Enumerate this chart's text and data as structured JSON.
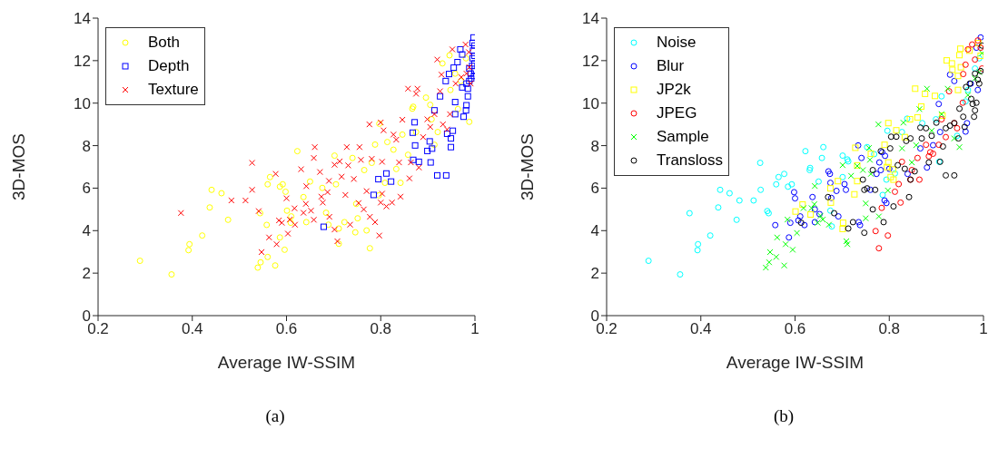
{
  "chart_data": [
    {
      "type": "scatter",
      "xlabel": "Average IW-SSIM",
      "ylabel": "3D-MOS",
      "annotations": [
        "(a)"
      ],
      "xlim": [
        0.2,
        1
      ],
      "xticks": [
        0.2,
        0.4,
        0.6,
        0.8,
        1
      ],
      "ylim": [
        0,
        14
      ],
      "yticks": [
        0,
        2,
        4,
        6,
        8,
        10,
        12,
        14
      ],
      "grid": false,
      "legend": "top left",
      "series": [
        {
          "name": "Both",
          "color": "#ffff00",
          "marker": "circle",
          "x": [
            0.289,
            0.356,
            0.392,
            0.394,
            0.421,
            0.437,
            0.441,
            0.462,
            0.476,
            0.539,
            0.545,
            0.56,
            0.558,
            0.544,
            0.56,
            0.565,
            0.576,
            0.586,
            0.596,
            0.586,
            0.592,
            0.598,
            0.601,
            0.61,
            0.609,
            0.623,
            0.636,
            0.642,
            0.65,
            0.676,
            0.684,
            0.689,
            0.702,
            0.705,
            0.711,
            0.711,
            0.723,
            0.74,
            0.746,
            0.748,
            0.751,
            0.765,
            0.77,
            0.777,
            0.781,
            0.788,
            0.797,
            0.796,
            0.809,
            0.814,
            0.827,
            0.833,
            0.842,
            0.846,
            0.858,
            0.867,
            0.869,
            0.875,
            0.896,
            0.905,
            0.908,
            0.914,
            0.921,
            0.931,
            0.946,
            0.948,
            0.958,
            0.964,
            0.97,
            0.981,
            0.988
          ],
          "values": [
            2.58,
            1.94,
            3.08,
            3.36,
            3.77,
            5.09,
            5.92,
            5.76,
            4.51,
            2.26,
            2.51,
            2.76,
            4.27,
            4.82,
            6.18,
            6.52,
            2.36,
            3.68,
            3.1,
            6.07,
            6.18,
            5.83,
            4.94,
            4.67,
            4.37,
            7.74,
            5.58,
            4.4,
            6.31,
            6.01,
            4.84,
            4.28,
            7.53,
            6.18,
            4.1,
            3.38,
            4.4,
            7.42,
            3.92,
            5.26,
            4.58,
            6.85,
            4.01,
            3.17,
            7.19,
            8.05,
            9.03,
            5.66,
            6.25,
            8.17,
            7.81,
            6.9,
            6.25,
            8.52,
            7.57,
            9.74,
            9.83,
            8.64,
            10.26,
            9.92,
            9.24,
            8.04,
            8.64,
            11.87,
            12.25,
            10.62,
            11.39,
            9.72,
            11.04,
            12.11,
            9.12
          ]
        },
        {
          "name": "Depth",
          "color": "#0000ff",
          "marker": "square",
          "x": [
            0.679,
            0.785,
            0.795,
            0.812,
            0.822,
            0.869,
            0.873,
            0.881,
            0.872,
            0.868,
            0.899,
            0.906,
            0.909,
            0.904,
            0.92,
            0.939,
            0.949,
            0.949,
            0.941,
            0.953,
            0.958,
            0.914,
            0.926,
            0.938,
            0.945,
            0.955,
            0.969,
            0.973,
            0.963,
            0.958,
            0.973,
            0.982,
            0.985,
            0.981,
            0.976,
            0.985,
            0.988,
            0.991,
            0.994,
            0.995,
            0.996,
            0.995,
            0.997,
            0.999,
            0.999,
            0.999,
            0.992,
            0.988,
            0.999,
            0.998,
            0.982
          ],
          "values": [
            4.18,
            5.68,
            6.42,
            6.69,
            6.31,
            7.33,
            8.01,
            7.24,
            9.1,
            8.61,
            7.75,
            7.21,
            7.86,
            8.2,
            6.6,
            6.6,
            7.93,
            8.34,
            8.56,
            8.7,
            9.48,
            9.66,
            10.32,
            11.04,
            11.37,
            11.67,
            12.53,
            12.29,
            11.93,
            10.05,
            10.74,
            9.9,
            10.32,
            9.66,
            9.36,
            10.68,
            11.04,
            11.39,
            11.75,
            12.11,
            12.47,
            12.83,
            13.09,
            12.71,
            12.23,
            11.51,
            11.16,
            11.63,
            11.87,
            11.28,
            10.92
          ]
        },
        {
          "name": "Texture",
          "color": "#ff0000",
          "marker": "cross",
          "x": [
            0.376,
            0.483,
            0.513,
            0.527,
            0.527,
            0.541,
            0.547,
            0.563,
            0.577,
            0.579,
            0.584,
            0.59,
            0.6,
            0.603,
            0.607,
            0.618,
            0.617,
            0.631,
            0.642,
            0.641,
            0.636,
            0.652,
            0.658,
            0.66,
            0.658,
            0.671,
            0.674,
            0.677,
            0.687,
            0.69,
            0.691,
            0.702,
            0.708,
            0.702,
            0.713,
            0.717,
            0.725,
            0.728,
            0.731,
            0.735,
            0.743,
            0.755,
            0.758,
            0.753,
            0.764,
            0.77,
            0.776,
            0.777,
            0.781,
            0.788,
            0.797,
            0.8,
            0.803,
            0.803,
            0.8,
            0.806,
            0.812,
            0.824,
            0.827,
            0.833,
            0.839,
            0.842,
            0.846,
            0.858,
            0.861,
            0.864,
            0.875,
            0.878,
            0.881,
            0.89,
            0.899,
            0.905,
            0.914,
            0.92,
            0.926,
            0.929,
            0.932,
            0.941,
            0.947,
            0.952,
            0.959,
            0.971,
            0.98,
            0.987,
            0.988,
            0.991,
            0.982
          ],
          "values": [
            4.83,
            5.42,
            5.42,
            5.92,
            7.19,
            4.92,
            2.99,
            3.68,
            6.67,
            3.36,
            4.48,
            4.37,
            5.52,
            3.86,
            4.52,
            4.28,
            5.05,
            6.89,
            6.09,
            5.26,
            4.84,
            4.94,
            7.42,
            7.93,
            4.51,
            6.76,
            5.6,
            5.32,
            5.81,
            6.34,
            4.65,
            4.05,
            3.5,
            7.1,
            7.26,
            6.54,
            5.68,
            7.93,
            7.07,
            4.28,
            6.43,
            7.93,
            7.33,
            5.3,
            5.0,
            5.86,
            9.0,
            4.65,
            7.38,
            4.4,
            3.77,
            9.09,
            7.24,
            5.74,
            5.32,
            8.72,
            5.14,
            5.32,
            8.52,
            8.28,
            7.21,
            5.6,
            9.22,
            10.68,
            6.46,
            7.21,
            10.44,
            10.68,
            6.97,
            8.4,
            9.24,
            8.88,
            9.48,
            12.05,
            10.56,
            11.34,
            9.0,
            8.76,
            9.48,
            12.53,
            10.92,
            11.22,
            12.76,
            12.4,
            11.69,
            10.92,
            11.39
          ]
        }
      ]
    },
    {
      "type": "scatter",
      "xlabel": "Average IW-SSIM",
      "ylabel": "3D-MOS",
      "annotations": [
        "(b)"
      ],
      "xlim": [
        0.2,
        1
      ],
      "xticks": [
        0.2,
        0.4,
        0.6,
        0.8,
        1
      ],
      "ylim": [
        0,
        14
      ],
      "yticks": [
        0,
        2,
        4,
        6,
        8,
        10,
        12,
        14
      ],
      "grid": false,
      "legend": "top left",
      "series": [
        {
          "name": "Noise",
          "color": "#00ffff",
          "marker": "circle",
          "x": [
            0.289,
            0.356,
            0.376,
            0.393,
            0.394,
            0.42,
            0.437,
            0.441,
            0.461,
            0.476,
            0.482,
            0.512,
            0.526,
            0.527,
            0.541,
            0.544,
            0.56,
            0.565,
            0.577,
            0.585,
            0.593,
            0.622,
            0.631,
            0.632,
            0.65,
            0.657,
            0.66,
            0.675,
            0.678,
            0.701,
            0.701,
            0.711,
            0.713,
            0.753,
            0.768,
            0.786,
            0.794,
            0.796,
            0.812,
            0.827,
            0.838,
            0.87,
            0.899,
            0.906,
            0.911,
            0.944,
            0.962,
            0.967,
            0.982,
            0.991
          ],
          "values": [
            2.58,
            1.94,
            4.82,
            3.08,
            3.36,
            3.77,
            5.09,
            5.92,
            5.76,
            4.51,
            5.42,
            5.42,
            7.19,
            5.92,
            4.92,
            4.82,
            6.18,
            6.52,
            6.67,
            6.07,
            6.18,
            7.74,
            6.85,
            6.95,
            6.31,
            7.42,
            7.93,
            4.94,
            4.2,
            7.53,
            6.52,
            7.35,
            7.26,
            7.93,
            7.6,
            5.68,
            6.4,
            8.7,
            6.69,
            8.64,
            9.27,
            9.06,
            9.24,
            7.24,
            10.32,
            8.46,
            10.08,
            10.62,
            11.63,
            12.11
          ]
        },
        {
          "name": "Blur",
          "color": "#0000ff",
          "marker": "circle",
          "x": [
            0.558,
            0.587,
            0.59,
            0.598,
            0.6,
            0.607,
            0.611,
            0.62,
            0.637,
            0.642,
            0.642,
            0.652,
            0.671,
            0.674,
            0.675,
            0.677,
            0.688,
            0.692,
            0.705,
            0.708,
            0.735,
            0.738,
            0.734,
            0.741,
            0.76,
            0.773,
            0.779,
            0.782,
            0.785,
            0.79,
            0.794,
            0.791,
            0.8,
            0.839,
            0.866,
            0.88,
            0.893,
            0.905,
            0.908,
            0.929,
            0.938,
            0.962,
            0.965,
            0.973,
            0.988,
            0.994,
            0.985
          ],
          "values": [
            4.26,
            3.68,
            4.37,
            5.81,
            5.52,
            4.48,
            4.67,
            4.26,
            5.58,
            4.4,
            5.0,
            4.78,
            6.79,
            6.67,
            6.25,
            5.54,
            5.87,
            4.67,
            6.19,
            5.92,
            4.4,
            4.26,
            8.01,
            7.42,
            5.92,
            6.67,
            7.21,
            6.85,
            7.69,
            5.42,
            5.3,
            7.52,
            6.91,
            6.67,
            7.87,
            6.97,
            8.02,
            9.96,
            8.64,
            11.34,
            11.04,
            8.66,
            9.06,
            10.92,
            10.62,
            13.09,
            12.61
          ]
        },
        {
          "name": "JP2k",
          "color": "#ffff00",
          "marker": "square",
          "x": [
            0.601,
            0.616,
            0.633,
            0.675,
            0.676,
            0.691,
            0.701,
            0.702,
            0.726,
            0.728,
            0.732,
            0.732,
            0.761,
            0.79,
            0.798,
            0.798,
            0.795,
            0.803,
            0.808,
            0.809,
            0.815,
            0.833,
            0.844,
            0.86,
            0.855,
            0.868,
            0.876,
            0.897,
            0.913,
            0.922,
            0.933,
            0.934,
            0.946,
            0.946,
            0.949,
            0.951,
            0.952,
            0.97,
            0.989,
            0.994
          ],
          "values": [
            4.9,
            5.23,
            4.76,
            5.99,
            5.32,
            6.33,
            4.08,
            4.37,
            5.71,
            7.9,
            7.07,
            6.33,
            7.62,
            8.04,
            9.06,
            7.21,
            6.99,
            6.52,
            6.88,
            6.4,
            8.72,
            8.4,
            9.24,
            9.33,
            10.68,
            9.84,
            10.44,
            10.34,
            9.41,
            12.01,
            11.87,
            11.57,
            10.62,
            11.28,
            12.26,
            12.56,
            11.69,
            12.47,
            12.83,
            12.23
          ]
        },
        {
          "name": "JPEG",
          "color": "#ff0000",
          "marker": "circle",
          "x": [
            0.771,
            0.778,
            0.784,
            0.797,
            0.812,
            0.824,
            0.82,
            0.827,
            0.845,
            0.848,
            0.86,
            0.864,
            0.878,
            0.884,
            0.887,
            0.893,
            0.905,
            0.911,
            0.92,
            0.927,
            0.938,
            0.944,
            0.956,
            0.957,
            0.962,
            0.967,
            0.976,
            0.982,
            0.988,
            0.994,
            0.997
          ],
          "values": [
            3.98,
            3.17,
            5.07,
            3.77,
            5.83,
            5.32,
            6.19,
            7.24,
            6.4,
            6.85,
            7.42,
            6.4,
            8.04,
            7.5,
            7.69,
            7.62,
            8.04,
            9.24,
            8.4,
            10.56,
            9.06,
            8.82,
            10.02,
            11.37,
            11.81,
            12.53,
            12.76,
            12.05,
            12.95,
            12.61,
            11.63
          ]
        },
        {
          "name": "Sample",
          "color": "#00ff00",
          "marker": "cross",
          "x": [
            0.538,
            0.545,
            0.547,
            0.56,
            0.562,
            0.577,
            0.58,
            0.584,
            0.595,
            0.604,
            0.618,
            0.635,
            0.641,
            0.642,
            0.648,
            0.654,
            0.659,
            0.672,
            0.701,
            0.709,
            0.711,
            0.719,
            0.732,
            0.744,
            0.75,
            0.75,
            0.757,
            0.759,
            0.761,
            0.777,
            0.778,
            0.797,
            0.827,
            0.83,
            0.848,
            0.857,
            0.864,
            0.88,
            0.89,
            0.911,
            0.924,
            0.938,
            0.949,
            0.967,
            0.982,
            0.991,
            0.997
          ],
          "values": [
            2.26,
            2.51,
            2.99,
            2.76,
            3.68,
            2.36,
            3.36,
            4.52,
            3.1,
            3.89,
            5.06,
            5.06,
            5.24,
            6.1,
            4.37,
            4.7,
            4.52,
            4.28,
            7.08,
            3.5,
            3.36,
            6.58,
            7.04,
            6.85,
            5.28,
            4.58,
            7.89,
            7.33,
            6.67,
            9.0,
            4.67,
            5.89,
            7.87,
            9.08,
            7.21,
            8.02,
            9.72,
            10.68,
            8.7,
            9.48,
            10.68,
            8.34,
            7.93,
            10.38,
            11.16,
            11.46,
            12.35
          ]
        },
        {
          "name": "Transloss",
          "color": "#000000",
          "marker": "circle",
          "x": [
            0.613,
            0.67,
            0.683,
            0.713,
            0.723,
            0.744,
            0.747,
            0.747,
            0.753,
            0.765,
            0.765,
            0.77,
            0.782,
            0.788,
            0.802,
            0.809,
            0.804,
            0.815,
            0.818,
            0.833,
            0.836,
            0.842,
            0.845,
            0.845,
            0.854,
            0.866,
            0.869,
            0.878,
            0.884,
            0.89,
            0.9,
            0.908,
            0.914,
            0.92,
            0.92,
            0.929,
            0.938,
            0.938,
            0.947,
            0.949,
            0.957,
            0.96,
            0.963,
            0.971,
            0.974,
            0.977,
            0.98,
            0.982,
            0.985,
            0.982,
            0.988,
            0.991,
            0.994,
            0.997
          ],
          "values": [
            4.37,
            5.58,
            4.82,
            4.1,
            4.4,
            6.4,
            3.9,
            5.92,
            5.99,
            6.85,
            5.0,
            5.92,
            7.74,
            4.4,
            7.87,
            5.14,
            8.42,
            8.42,
            7.08,
            6.91,
            8.22,
            5.58,
            8.34,
            6.4,
            6.79,
            8.85,
            8.34,
            8.82,
            7.21,
            8.46,
            9.08,
            7.24,
            7.96,
            6.6,
            8.82,
            8.94,
            6.6,
            9.06,
            8.34,
            9.74,
            9.36,
            8.88,
            10.76,
            10.92,
            10.2,
            9.96,
            9.36,
            9.66,
            10.02,
            11.39,
            11.1,
            10.92,
            11.51,
            12.71
          ]
        }
      ]
    }
  ]
}
